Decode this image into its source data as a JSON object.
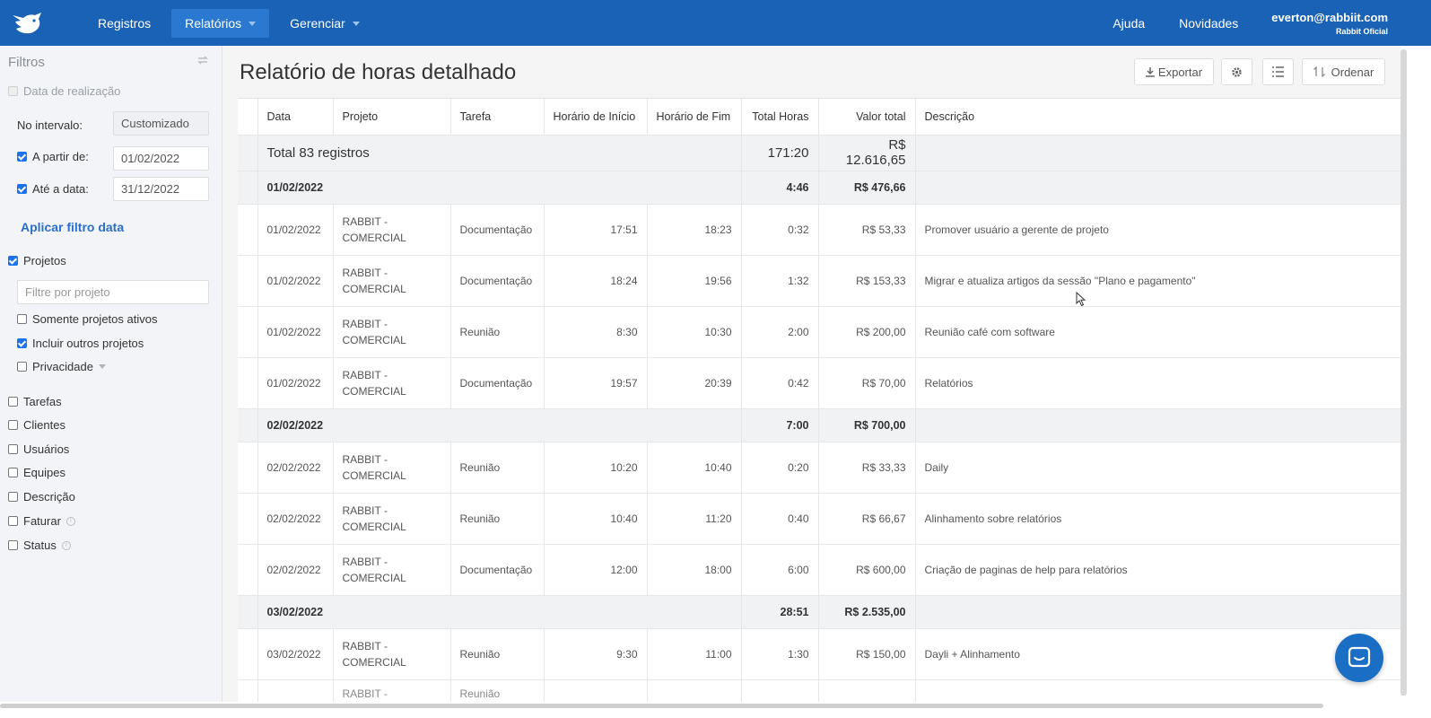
{
  "nav": {
    "items": [
      {
        "label": "Registros",
        "active": false,
        "dropdown": false
      },
      {
        "label": "Relatórios",
        "active": true,
        "dropdown": true
      },
      {
        "label": "Gerenciar",
        "active": false,
        "dropdown": true
      }
    ],
    "help": "Ajuda",
    "news": "Novidades",
    "user_email": "everton@rabbiit.com",
    "user_org": "Rabbit Oficial",
    "logo_icon": "rabbit-logo-icon",
    "brand_color": "#1a62b5"
  },
  "sidebar": {
    "title": "Filtros",
    "reset_icon": "refresh-icon",
    "date_filter": {
      "label": "Data de realização",
      "checked": false
    },
    "interval_label": "No intervalo:",
    "interval_value": "Customizado",
    "from_label": "A partir de:",
    "from_value": "01/02/2022",
    "to_label": "Até a data:",
    "to_value": "31/12/2022",
    "apply_label": "Aplicar filtro data",
    "projects_label": "Projetos",
    "project_filter_placeholder": "Filtre por projeto",
    "only_active_label": "Somente projetos ativos",
    "include_others_label": "Incluir outros projetos",
    "privacy_label": "Privacidade",
    "filters": [
      {
        "label": "Tarefas",
        "info": false
      },
      {
        "label": "Clientes",
        "info": false
      },
      {
        "label": "Usuários",
        "info": false
      },
      {
        "label": "Equipes",
        "info": false
      },
      {
        "label": "Descrição",
        "info": false
      },
      {
        "label": "Faturar",
        "info": true
      },
      {
        "label": "Status",
        "info": true
      }
    ]
  },
  "main": {
    "title": "Relatório de horas detalhado",
    "export_label": "Exportar",
    "order_label": "Ordenar",
    "columns": [
      "Data",
      "Projeto",
      "Tarefa",
      "Horário de Início",
      "Horário de Fim",
      "Total Horas",
      "Valor total",
      "Descrição"
    ],
    "total": {
      "label": "Total 83 registros",
      "hours": "171:20",
      "value": "R$ 12.616,65"
    },
    "groups": [
      {
        "date": "01/02/2022",
        "hours": "4:46",
        "value": "R$ 476,66",
        "rows": [
          {
            "date": "01/02/2022",
            "project": [
              "RABBIT -",
              "COMERCIAL"
            ],
            "task": "Documentação",
            "start": "17:51",
            "end": "18:23",
            "hours": "0:32",
            "value": "R$ 53,33",
            "desc": "Promover usuário a gerente de projeto"
          },
          {
            "date": "01/02/2022",
            "project": [
              "RABBIT -",
              "COMERCIAL"
            ],
            "task": "Documentação",
            "start": "18:24",
            "end": "19:56",
            "hours": "1:32",
            "value": "R$ 153,33",
            "desc": "Migrar e atualiza artigos da sessão \"Plano e pagamento\""
          },
          {
            "date": "01/02/2022",
            "project": [
              "RABBIT -",
              "COMERCIAL"
            ],
            "task": "Reunião",
            "start": "8:30",
            "end": "10:30",
            "hours": "2:00",
            "value": "R$ 200,00",
            "desc": "Reunião café com software"
          },
          {
            "date": "01/02/2022",
            "project": [
              "RABBIT -",
              "COMERCIAL"
            ],
            "task": "Documentação",
            "start": "19:57",
            "end": "20:39",
            "hours": "0:42",
            "value": "R$ 70,00",
            "desc": "Relatórios"
          }
        ]
      },
      {
        "date": "02/02/2022",
        "hours": "7:00",
        "value": "R$ 700,00",
        "rows": [
          {
            "date": "02/02/2022",
            "project": [
              "RABBIT -",
              "COMERCIAL"
            ],
            "task": "Reunião",
            "start": "10:20",
            "end": "10:40",
            "hours": "0:20",
            "value": "R$ 33,33",
            "desc": "Daily"
          },
          {
            "date": "02/02/2022",
            "project": [
              "RABBIT -",
              "COMERCIAL"
            ],
            "task": "Reunião",
            "start": "10:40",
            "end": "11:20",
            "hours": "0:40",
            "value": "R$ 66,67",
            "desc": "Alinhamento sobre relatórios"
          },
          {
            "date": "02/02/2022",
            "project": [
              "RABBIT -",
              "COMERCIAL"
            ],
            "task": "Documentação",
            "start": "12:00",
            "end": "18:00",
            "hours": "6:00",
            "value": "R$ 600,00",
            "desc": "Criação de paginas de help para relatórios"
          }
        ]
      },
      {
        "date": "03/02/2022",
        "hours": "28:51",
        "value": "R$ 2.535,00",
        "rows": [
          {
            "date": "03/02/2022",
            "project": [
              "RABBIT -",
              "COMERCIAL"
            ],
            "task": "Reunião",
            "start": "9:30",
            "end": "11:00",
            "hours": "1:30",
            "value": "R$ 150,00",
            "desc": "Dayli + Alinhamento"
          }
        ]
      }
    ],
    "partial_row": {
      "project": "RABBIT -",
      "task": "Reunião"
    }
  }
}
